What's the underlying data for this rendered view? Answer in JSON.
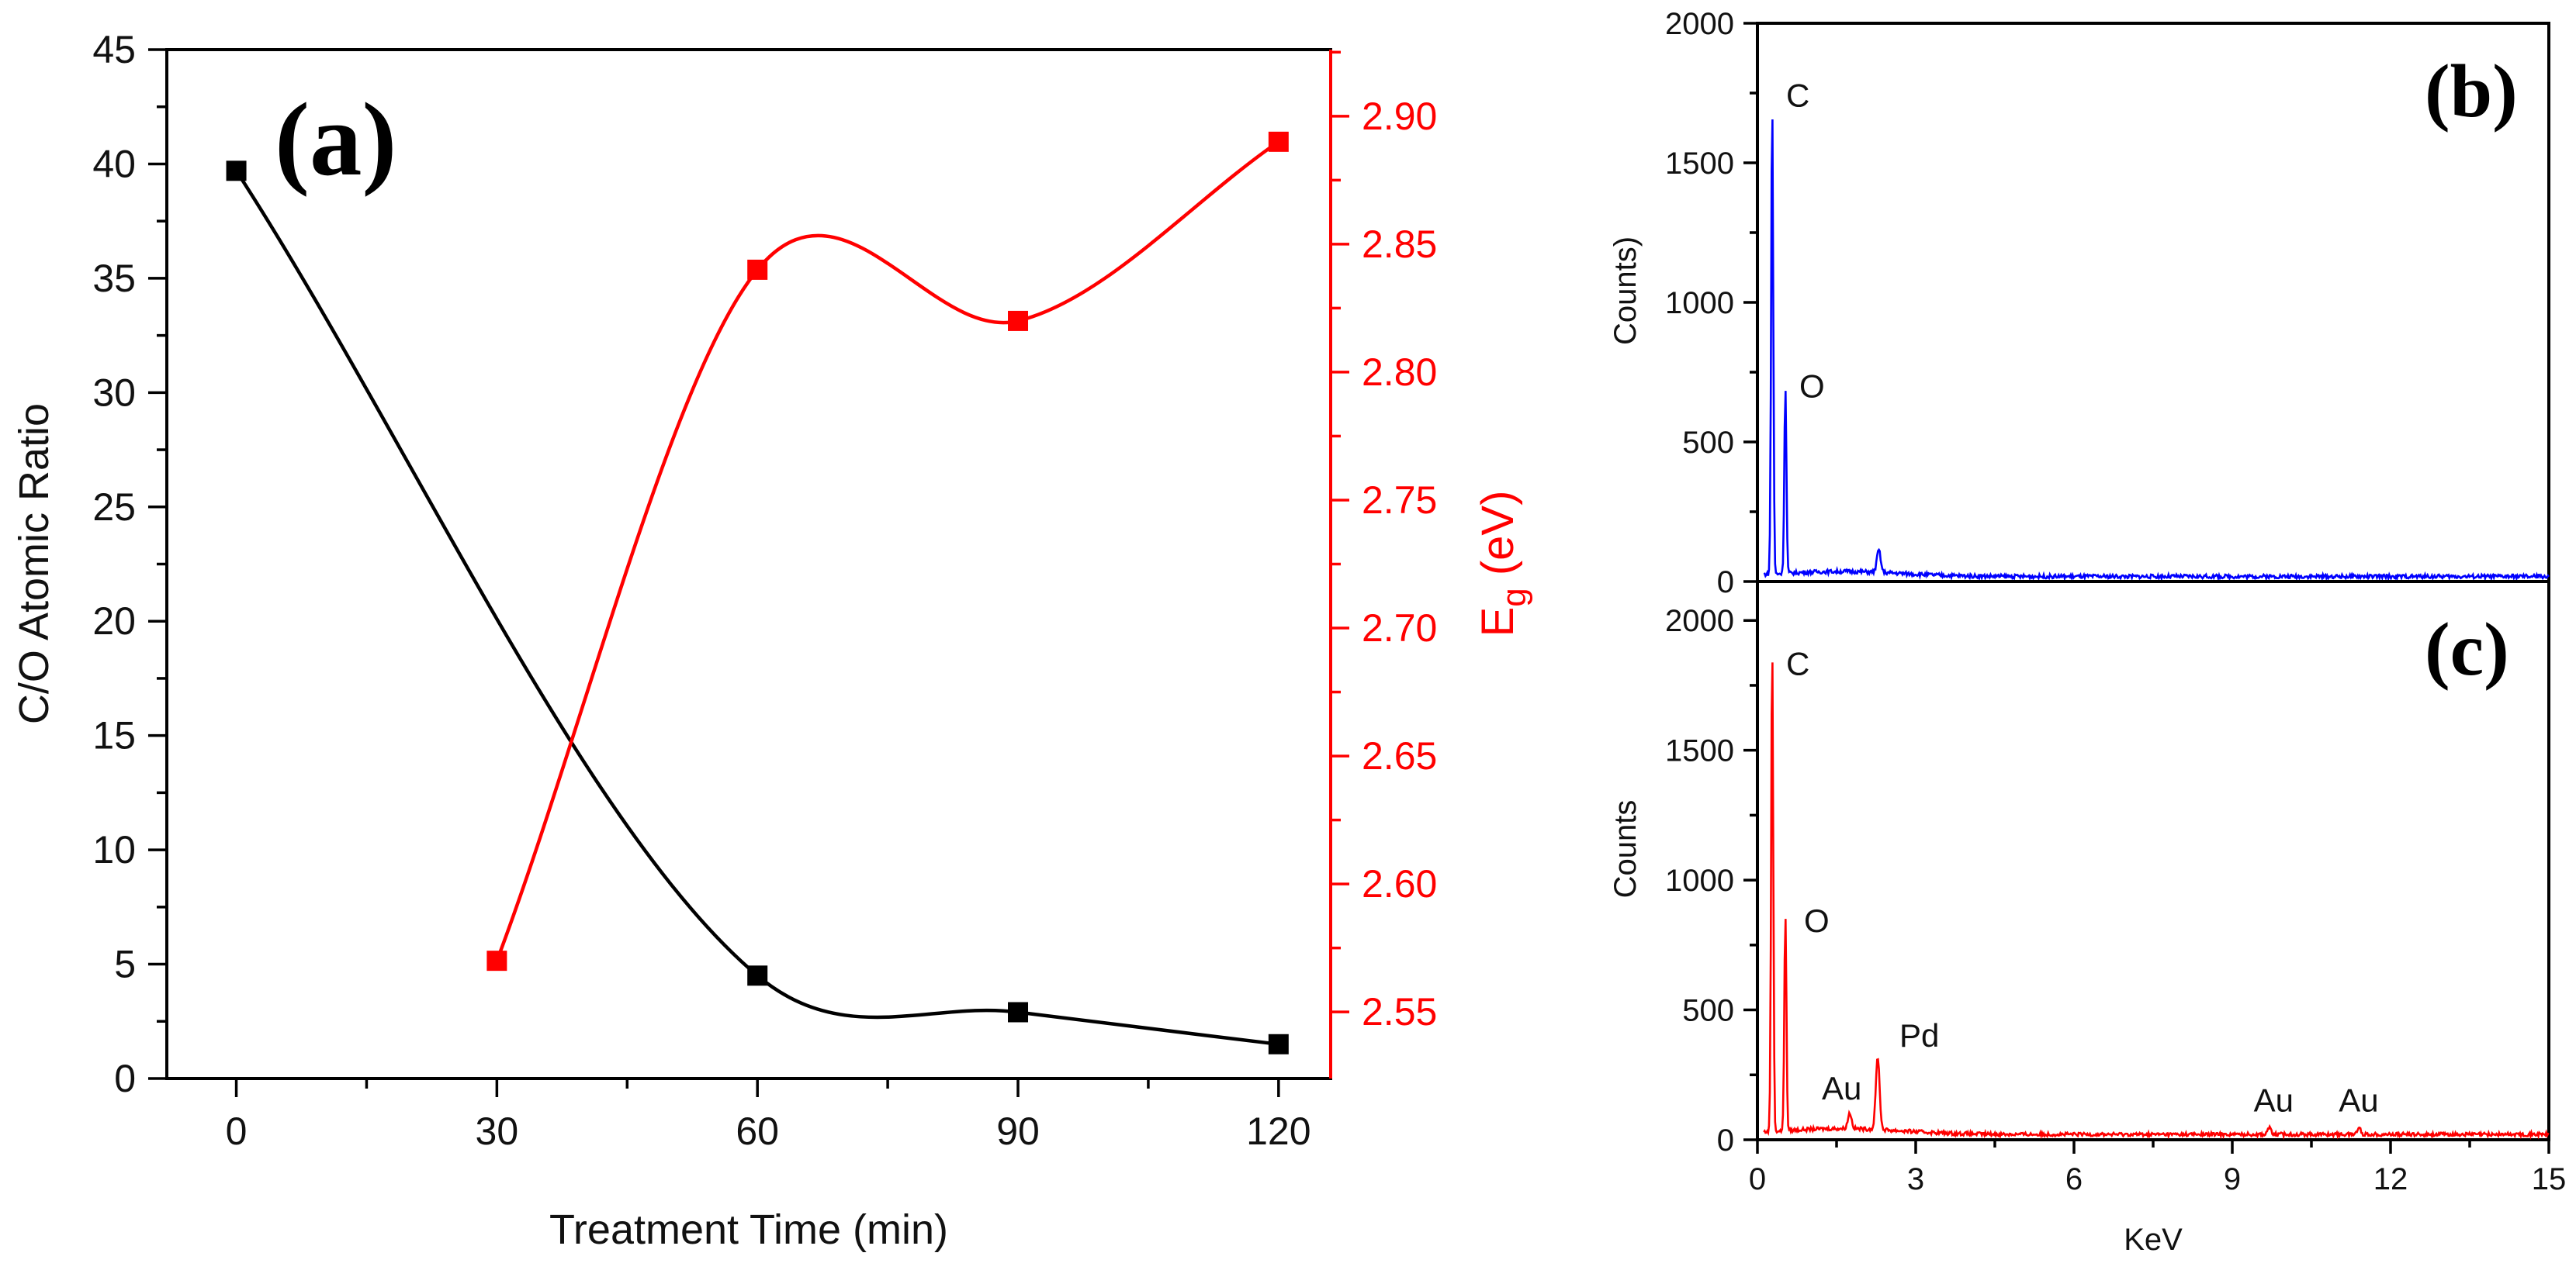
{
  "chart_data": [
    {
      "panel": "a",
      "type": "scatter",
      "panel_label": "(a)",
      "xlabel": "Treatment Time (min)",
      "ylabel": "C/O Atomic Ratio",
      "y2label_main": "E",
      "y2label_sub": "g",
      "y2label_unit": " (eV)",
      "xlim": [
        -8,
        126
      ],
      "ylim": [
        0,
        45
      ],
      "y2lim": [
        2.524,
        2.926
      ],
      "x_ticks": [
        0,
        30,
        60,
        90,
        120
      ],
      "y_ticks": [
        0,
        5,
        10,
        15,
        20,
        25,
        30,
        35,
        40,
        45
      ],
      "y2_ticks": [
        2.55,
        2.6,
        2.65,
        2.7,
        2.75,
        2.8,
        2.85,
        2.9
      ],
      "series": [
        {
          "name": "C/O Atomic Ratio",
          "axis": "left",
          "color": "#000000",
          "x": [
            0,
            60,
            90,
            120
          ],
          "values": [
            39.7,
            4.5,
            2.9,
            1.5
          ]
        },
        {
          "name": "Eg (eV)",
          "axis": "right",
          "color": "#ff0000",
          "x": [
            30,
            60,
            90,
            120
          ],
          "values": [
            2.57,
            2.84,
            2.82,
            2.89
          ]
        }
      ]
    },
    {
      "panel": "b",
      "type": "line",
      "panel_label": "(b)",
      "xlabel": "",
      "ylabel": "Counts)",
      "color": "#0000ff",
      "xlim": [
        0,
        15
      ],
      "ylim": [
        0,
        2000
      ],
      "x_ticks": [
        0,
        3,
        6,
        9,
        12,
        15
      ],
      "y_ticks": [
        0,
        500,
        1000,
        1500,
        2000
      ],
      "peaks": [
        {
          "x": 0.28,
          "y": 1690,
          "label": "C"
        },
        {
          "x": 0.53,
          "y": 660,
          "label": "O"
        }
      ],
      "minor_peaks": [
        {
          "x": 2.3,
          "y": 80
        }
      ],
      "baseline": 20
    },
    {
      "panel": "c",
      "type": "line",
      "panel_label": "(c)",
      "xlabel": "KeV",
      "ylabel": "Counts",
      "color": "#ff0000",
      "xlim": [
        0,
        15
      ],
      "ylim": [
        0,
        2150
      ],
      "x_ticks": [
        0,
        3,
        6,
        9,
        12,
        15
      ],
      "y_ticks": [
        0,
        500,
        1000,
        1500,
        2000
      ],
      "peaks": [
        {
          "x": 0.28,
          "y": 1880,
          "label": "C"
        },
        {
          "x": 0.53,
          "y": 830,
          "label": "O"
        },
        {
          "x": 1.75,
          "y": 60,
          "label": "Au"
        },
        {
          "x": 2.28,
          "y": 280,
          "label": "Pd"
        },
        {
          "x": 9.7,
          "y": 25,
          "label": "Au"
        },
        {
          "x": 11.4,
          "y": 25,
          "label": "Au"
        }
      ],
      "baseline": 25
    }
  ]
}
